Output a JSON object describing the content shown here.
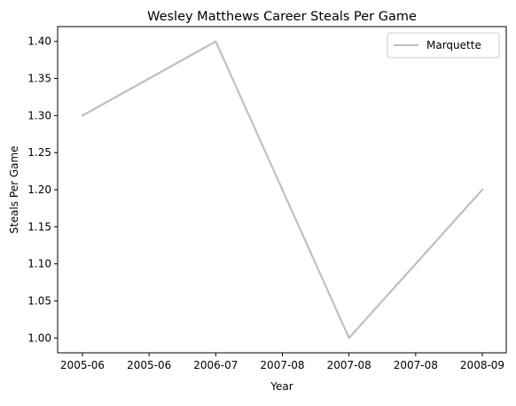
{
  "chart_data": {
    "type": "line",
    "title": "Wesley Matthews Career Steals Per Game",
    "xlabel": "Year",
    "ylabel": "Steals Per Game",
    "x": [
      "2005-06",
      "2006-07",
      "2007-08",
      "2008-09"
    ],
    "x_tick_labels": [
      "2005-06",
      "2005-06",
      "2006-07",
      "2007-08",
      "2007-08",
      "2007-08",
      "2008-09"
    ],
    "series": [
      {
        "name": "Marquette",
        "values": [
          1.3,
          1.4,
          1.0,
          1.2
        ],
        "color": "#bfbfbf"
      }
    ],
    "y_ticks": [
      1.0,
      1.05,
      1.1,
      1.15,
      1.2,
      1.25,
      1.3,
      1.35,
      1.4
    ],
    "y_tick_labels": [
      "1.00",
      "1.05",
      "1.10",
      "1.15",
      "1.20",
      "1.25",
      "1.30",
      "1.35",
      "1.40"
    ],
    "ylim": [
      0.98,
      1.42
    ],
    "grid": false,
    "legend_position": "top-right"
  }
}
